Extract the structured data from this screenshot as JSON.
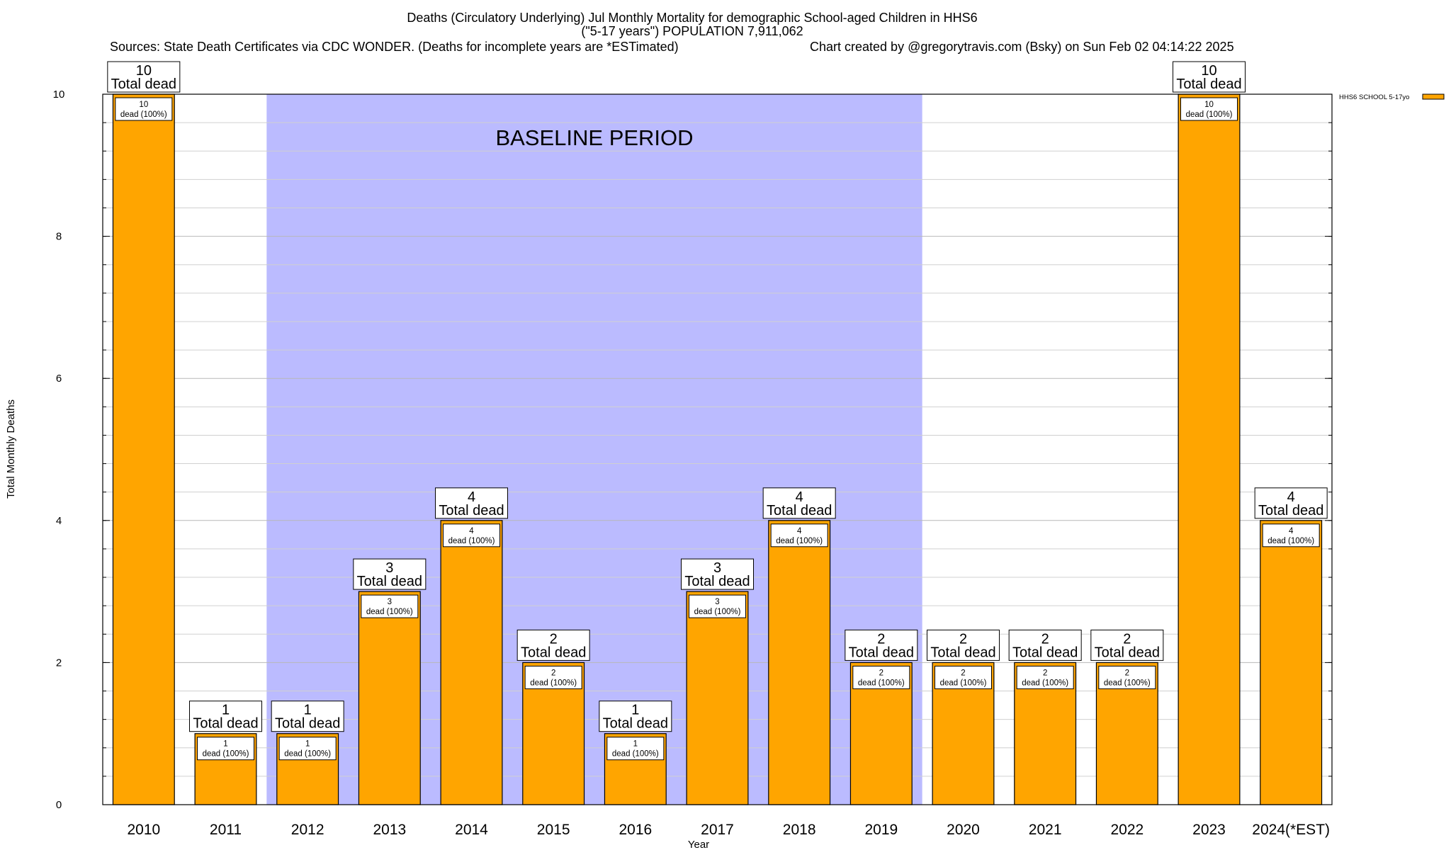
{
  "chart_data": {
    "type": "bar",
    "title_line1": "Deaths (Circulatory Underlying) Jul Monthly Mortality for demographic School-aged Children in HHS6",
    "title_line2": "(\"5-17 years\") POPULATION 7,911,062",
    "sources": "Sources: State Death Certificates via CDC WONDER. (Deaths for incomplete years are *ESTimated)",
    "credit": "Chart created by @gregorytravis.com (Bsky) on Sun Feb 02 04:14:22 2025",
    "xlabel": "Year",
    "ylabel": "Total Monthly Deaths",
    "ylim": [
      0,
      10
    ],
    "yticks": [
      0,
      2,
      4,
      6,
      8,
      10
    ],
    "categories": [
      "2010",
      "2011",
      "2012",
      "2013",
      "2014",
      "2015",
      "2016",
      "2017",
      "2018",
      "2019",
      "2020",
      "2021",
      "2022",
      "2023",
      "2024(*EST)"
    ],
    "series": [
      {
        "name": "HHS6 SCHOOL 5-17yo",
        "color": "#ffa500",
        "values": [
          10,
          1,
          1,
          3,
          4,
          2,
          1,
          3,
          4,
          2,
          2,
          2,
          2,
          10,
          4
        ]
      }
    ],
    "total_label_suffix": "Total dead",
    "inner_label_suffix": "dead (100%)",
    "baseline": {
      "label": "BASELINE PERIOD",
      "from": "2012",
      "to": "2019",
      "color": "#bbbbff"
    },
    "grid": true,
    "legend_position": "top-right"
  }
}
